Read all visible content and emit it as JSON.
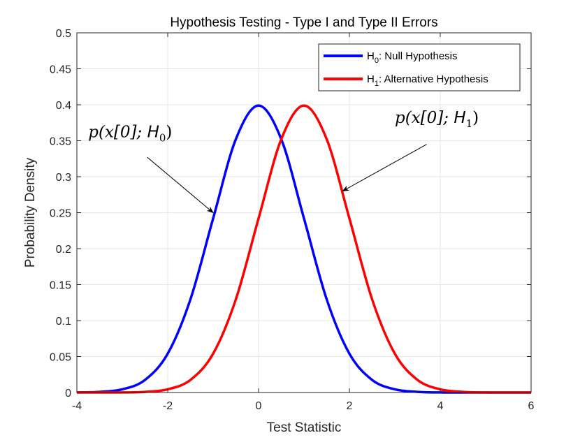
{
  "chart_data": {
    "type": "line",
    "title": "Hypothesis Testing - Type I and Type II Errors",
    "xlabel": "Test Statistic",
    "ylabel": "Probability Density",
    "xlim": [
      -4,
      6
    ],
    "ylim": [
      0,
      0.5
    ],
    "xticks": [
      -4,
      -2,
      0,
      2,
      4,
      6
    ],
    "xtick_labels": [
      "-4",
      "-2",
      "0",
      "2",
      "4",
      "6"
    ],
    "yticks": [
      0,
      0.05,
      0.1,
      0.15,
      0.2,
      0.25,
      0.3,
      0.35,
      0.4,
      0.45,
      0.5
    ],
    "ytick_labels": [
      "0",
      "0.05",
      "0.1",
      "0.15",
      "0.2",
      "0.25",
      "0.3",
      "0.35",
      "0.4",
      "0.45",
      "0.5"
    ],
    "grid": true,
    "legend_position": "top-right",
    "series": [
      {
        "name_main": "H",
        "name_sub": "0",
        "name_rest": ": Null Hypothesis",
        "color": "#0000ff",
        "x": [
          -4,
          -3.5,
          -3,
          -2.5,
          -2,
          -1.5,
          -1,
          -0.5,
          0,
          0.5,
          1,
          1.5,
          2,
          2.5,
          3,
          3.5,
          4,
          4.5,
          5,
          5.5,
          6
        ],
        "y": [
          0.0001,
          0.0009,
          0.0044,
          0.0175,
          0.054,
          0.1295,
          0.242,
          0.3521,
          0.3989,
          0.3521,
          0.242,
          0.1295,
          0.054,
          0.0175,
          0.0044,
          0.0009,
          0.0001,
          0.0,
          0.0,
          0.0,
          0.0
        ]
      },
      {
        "name_main": "H",
        "name_sub": "1",
        "name_rest": ": Alternative Hypothesis",
        "color": "#ff0000",
        "x": [
          -4,
          -3.5,
          -3,
          -2.5,
          -2,
          -1.5,
          -1,
          -0.5,
          0,
          0.5,
          1,
          1.5,
          2,
          2.5,
          3,
          3.5,
          4,
          4.5,
          5,
          5.5,
          6
        ],
        "y": [
          0.0,
          0.0,
          0.0001,
          0.0009,
          0.0044,
          0.0175,
          0.054,
          0.1295,
          0.242,
          0.3521,
          0.3989,
          0.3521,
          0.242,
          0.1295,
          0.054,
          0.0175,
          0.0044,
          0.0009,
          0.0001,
          0.0,
          0.0
        ]
      }
    ],
    "annotations": [
      {
        "text_main": "p(x[0]; ",
        "text_script": "H",
        "text_sub": "0",
        "text_end": ")",
        "label_x": -3.75,
        "label_y": 0.355,
        "arrow_from": [
          -2.45,
          0.327
        ],
        "arrow_to": [
          -1.0,
          0.25
        ]
      },
      {
        "text_main": "p(x[0]; ",
        "text_script": "H",
        "text_sub": "1",
        "text_end": ")",
        "label_x": 3.0,
        "label_y": 0.375,
        "arrow_from": [
          3.7,
          0.345
        ],
        "arrow_to": [
          1.85,
          0.28
        ]
      }
    ]
  }
}
